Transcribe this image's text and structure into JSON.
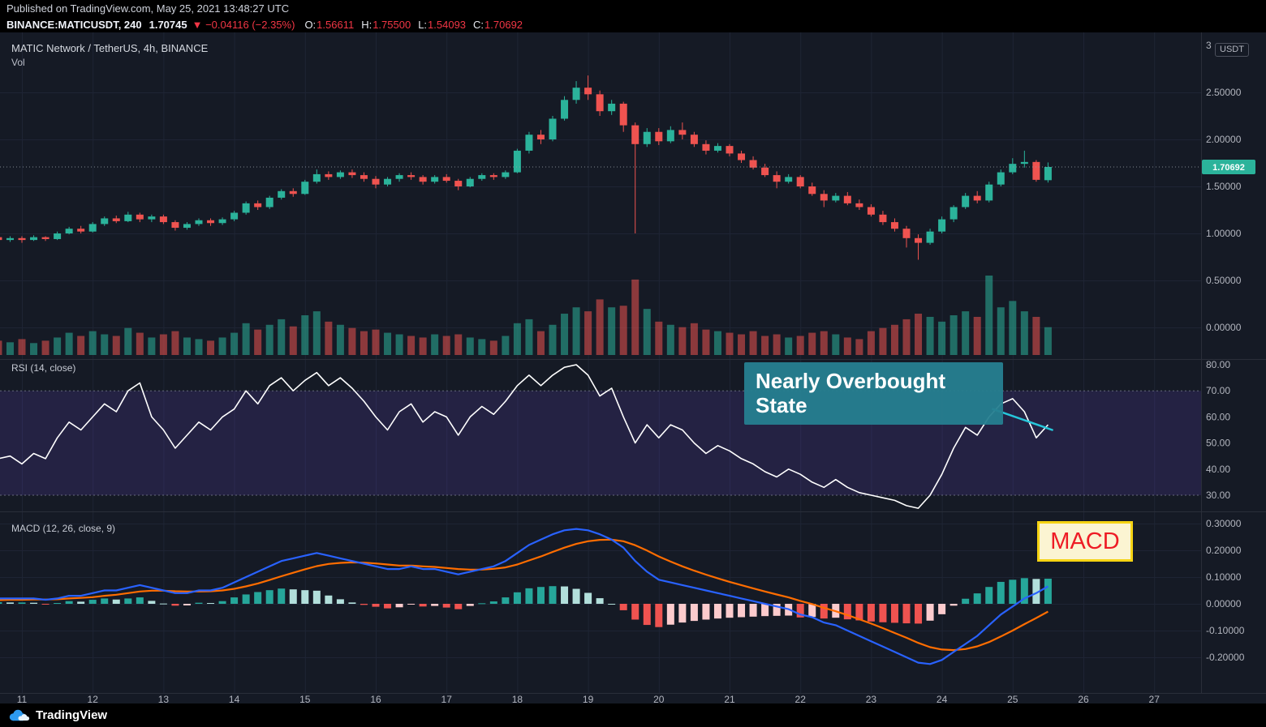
{
  "pub_bar": {
    "text": "Published on TradingView.com, May 25, 2021 13:48:27 UTC"
  },
  "header": {
    "symbol": "BINANCE:MATICUSDT, 240",
    "price": "1.70745",
    "change": "▼ −0.04116 (−2.35%)",
    "ohlc": [
      {
        "label": "O:",
        "value": "1.56611"
      },
      {
        "label": "H:",
        "value": "1.75500"
      },
      {
        "label": "L:",
        "value": "1.54093"
      },
      {
        "label": "C:",
        "value": "1.70692"
      }
    ]
  },
  "price_pane": {
    "title": "MATIC Network / TetherUS, 4h, BINANCE",
    "vol_label": "Vol",
    "unit_badge": "USDT"
  },
  "rsi_pane": {
    "title": "RSI (14, close)"
  },
  "macd_pane": {
    "title": "MACD (12, 26, close, 9)",
    "label_box": "MACD"
  },
  "annotation": {
    "lines": [
      "Nearly Overbought",
      "State"
    ]
  },
  "footer": {
    "brand": "TradingView"
  },
  "colors": {
    "bg": "#151a25",
    "grid": "#1e2434",
    "divider": "#2a2e39",
    "axis_text": "#b2b5be",
    "up": "#2bb39b",
    "down": "#ef5350",
    "vol_up": "rgba(43,179,155,0.55)",
    "vol_down": "rgba(239,83,80,0.55)",
    "rsi_band": "rgba(126,87,255,0.14)",
    "band_edge": "#8d93a1",
    "rsi_line": "#ffffff",
    "trendline": "#26c6da",
    "macd_line": "#2962ff",
    "macd_signal": "#ff6d00",
    "hist_up": "#26a69a",
    "hist_up_weak": "#b2dfdb",
    "hist_down": "#ef5350",
    "hist_down_weak": "#fccbcd",
    "annotation_bg": "#268090",
    "macd_box_border": "#f5d313",
    "macd_box_bg": "#fbf4d2",
    "macd_box_text": "#ee1c25",
    "last_price_tag_bg": "#2bb39b",
    "tag_text": "#ffffff"
  },
  "chart_data": [
    {
      "type": "candlestick",
      "title": "MATIC Network / TetherUS, 4h, BINANCE",
      "symbol": "BINANCE:MATICUSDT",
      "timeframe": "4h",
      "x_start_day": 10.666667,
      "x_step_days": 0.166667,
      "x_axis_days": [
        11,
        12,
        13,
        14,
        15,
        16,
        17,
        18,
        19,
        20,
        21,
        22,
        23,
        24,
        25,
        26,
        27
      ],
      "ylim": [
        0,
        3.14
      ],
      "y_ticks": [
        {
          "v": 3.0,
          "label": "3"
        },
        {
          "v": 2.5,
          "label": "2.50000"
        },
        {
          "v": 2.0,
          "label": "2.00000"
        },
        {
          "v": 1.5,
          "label": "1.50000"
        },
        {
          "v": 1.0,
          "label": "1.00000"
        },
        {
          "v": 0.5,
          "label": "0.50000"
        },
        {
          "v": 0.0,
          "label": "0.00000"
        }
      ],
      "last_price": 1.70692,
      "last_price_label": "1.70692",
      "candles": [
        [
          0.96,
          0.98,
          0.92,
          0.93
        ],
        [
          0.93,
          0.97,
          0.91,
          0.95
        ],
        [
          0.95,
          0.97,
          0.9,
          0.93
        ],
        [
          0.93,
          0.98,
          0.92,
          0.96
        ],
        [
          0.96,
          0.97,
          0.92,
          0.94
        ],
        [
          0.94,
          1.02,
          0.93,
          1.0
        ],
        [
          1.0,
          1.07,
          0.99,
          1.05
        ],
        [
          1.05,
          1.08,
          1.0,
          1.02
        ],
        [
          1.02,
          1.12,
          1.01,
          1.1
        ],
        [
          1.1,
          1.18,
          1.08,
          1.16
        ],
        [
          1.16,
          1.19,
          1.11,
          1.13
        ],
        [
          1.13,
          1.23,
          1.12,
          1.2
        ],
        [
          1.2,
          1.22,
          1.12,
          1.15
        ],
        [
          1.15,
          1.2,
          1.12,
          1.18
        ],
        [
          1.18,
          1.2,
          1.1,
          1.12
        ],
        [
          1.12,
          1.14,
          1.03,
          1.06
        ],
        [
          1.06,
          1.12,
          1.04,
          1.1
        ],
        [
          1.1,
          1.16,
          1.08,
          1.14
        ],
        [
          1.14,
          1.16,
          1.08,
          1.11
        ],
        [
          1.11,
          1.17,
          1.09,
          1.15
        ],
        [
          1.15,
          1.24,
          1.13,
          1.22
        ],
        [
          1.22,
          1.34,
          1.2,
          1.32
        ],
        [
          1.32,
          1.35,
          1.25,
          1.28
        ],
        [
          1.28,
          1.4,
          1.26,
          1.38
        ],
        [
          1.38,
          1.47,
          1.36,
          1.45
        ],
        [
          1.45,
          1.48,
          1.39,
          1.42
        ],
        [
          1.42,
          1.57,
          1.41,
          1.55
        ],
        [
          1.55,
          1.68,
          1.53,
          1.63
        ],
        [
          1.63,
          1.66,
          1.57,
          1.6
        ],
        [
          1.6,
          1.67,
          1.58,
          1.65
        ],
        [
          1.65,
          1.68,
          1.59,
          1.62
        ],
        [
          1.62,
          1.65,
          1.55,
          1.58
        ],
        [
          1.58,
          1.61,
          1.48,
          1.52
        ],
        [
          1.52,
          1.6,
          1.5,
          1.58
        ],
        [
          1.58,
          1.64,
          1.55,
          1.62
        ],
        [
          1.62,
          1.65,
          1.57,
          1.6
        ],
        [
          1.6,
          1.62,
          1.52,
          1.55
        ],
        [
          1.55,
          1.62,
          1.53,
          1.6
        ],
        [
          1.6,
          1.63,
          1.54,
          1.56
        ],
        [
          1.56,
          1.58,
          1.46,
          1.5
        ],
        [
          1.5,
          1.6,
          1.49,
          1.58
        ],
        [
          1.58,
          1.64,
          1.56,
          1.62
        ],
        [
          1.62,
          1.64,
          1.57,
          1.6
        ],
        [
          1.6,
          1.67,
          1.58,
          1.65
        ],
        [
          1.65,
          1.9,
          1.64,
          1.88
        ],
        [
          1.88,
          2.08,
          1.85,
          2.05
        ],
        [
          2.05,
          2.1,
          1.95,
          2.0
        ],
        [
          2.0,
          2.25,
          1.98,
          2.22
        ],
        [
          2.22,
          2.46,
          2.2,
          2.42
        ],
        [
          2.42,
          2.62,
          2.38,
          2.55
        ],
        [
          2.55,
          2.68,
          2.42,
          2.48
        ],
        [
          2.48,
          2.52,
          2.25,
          2.3
        ],
        [
          2.3,
          2.42,
          2.26,
          2.38
        ],
        [
          2.38,
          2.4,
          2.08,
          2.15
        ],
        [
          2.15,
          2.18,
          1.0,
          1.95
        ],
        [
          1.95,
          2.12,
          1.92,
          2.08
        ],
        [
          2.08,
          2.12,
          1.94,
          1.98
        ],
        [
          1.98,
          2.14,
          1.96,
          2.1
        ],
        [
          2.1,
          2.18,
          2.0,
          2.05
        ],
        [
          2.05,
          2.08,
          1.92,
          1.95
        ],
        [
          1.95,
          1.99,
          1.84,
          1.88
        ],
        [
          1.88,
          1.96,
          1.86,
          1.93
        ],
        [
          1.93,
          1.95,
          1.82,
          1.85
        ],
        [
          1.85,
          1.88,
          1.75,
          1.78
        ],
        [
          1.78,
          1.82,
          1.68,
          1.7
        ],
        [
          1.7,
          1.74,
          1.6,
          1.62
        ],
        [
          1.62,
          1.66,
          1.48,
          1.55
        ],
        [
          1.55,
          1.63,
          1.53,
          1.6
        ],
        [
          1.6,
          1.62,
          1.48,
          1.5
        ],
        [
          1.5,
          1.54,
          1.4,
          1.42
        ],
        [
          1.42,
          1.46,
          1.28,
          1.35
        ],
        [
          1.35,
          1.43,
          1.33,
          1.4
        ],
        [
          1.4,
          1.44,
          1.3,
          1.32
        ],
        [
          1.32,
          1.36,
          1.25,
          1.28
        ],
        [
          1.28,
          1.31,
          1.18,
          1.2
        ],
        [
          1.2,
          1.24,
          1.09,
          1.12
        ],
        [
          1.12,
          1.16,
          1.02,
          1.05
        ],
        [
          1.05,
          1.08,
          0.85,
          0.95
        ],
        [
          0.95,
          0.99,
          0.72,
          0.9
        ],
        [
          0.9,
          1.05,
          0.88,
          1.02
        ],
        [
          1.02,
          1.18,
          1.0,
          1.15
        ],
        [
          1.15,
          1.3,
          1.12,
          1.28
        ],
        [
          1.28,
          1.43,
          1.26,
          1.4
        ],
        [
          1.4,
          1.45,
          1.32,
          1.35
        ],
        [
          1.35,
          1.55,
          1.33,
          1.52
        ],
        [
          1.52,
          1.68,
          1.5,
          1.65
        ],
        [
          1.65,
          1.8,
          1.63,
          1.74
        ],
        [
          1.74,
          1.88,
          1.7,
          1.76
        ],
        [
          1.76,
          1.78,
          1.55,
          1.57
        ],
        [
          1.56611,
          1.755,
          1.54093,
          1.70692
        ]
      ],
      "volume": [
        18,
        16,
        20,
        15,
        18,
        22,
        28,
        24,
        30,
        26,
        24,
        34,
        28,
        22,
        26,
        30,
        22,
        20,
        18,
        22,
        28,
        40,
        32,
        38,
        45,
        36,
        50,
        55,
        42,
        38,
        34,
        30,
        32,
        28,
        26,
        24,
        22,
        26,
        24,
        26,
        22,
        20,
        18,
        24,
        40,
        45,
        30,
        38,
        52,
        60,
        55,
        70,
        60,
        62,
        95,
        58,
        42,
        38,
        35,
        40,
        32,
        30,
        28,
        26,
        30,
        24,
        26,
        22,
        24,
        28,
        30,
        26,
        22,
        20,
        30,
        34,
        38,
        45,
        52,
        48,
        42,
        50,
        55,
        48,
        100,
        60,
        68,
        55,
        48,
        35
      ]
    },
    {
      "type": "line",
      "name": "RSI (14, close)",
      "color": "#ffffff",
      "band": [
        30,
        70
      ],
      "ylim": [
        22,
        84
      ],
      "y_ticks": [
        {
          "v": 80,
          "label": "80.00"
        },
        {
          "v": 70,
          "label": "70.00"
        },
        {
          "v": 60,
          "label": "60.00"
        },
        {
          "v": 50,
          "label": "50.00"
        },
        {
          "v": 40,
          "label": "40.00"
        },
        {
          "v": 30,
          "label": "30.00"
        }
      ],
      "values": [
        44,
        45,
        42,
        46,
        44,
        52,
        58,
        55,
        60,
        65,
        62,
        70,
        73,
        60,
        55,
        48,
        53,
        58,
        55,
        60,
        63,
        70,
        65,
        72,
        75,
        70,
        74,
        77,
        72,
        75,
        71,
        66,
        60,
        55,
        62,
        65,
        58,
        62,
        60,
        53,
        60,
        64,
        61,
        66,
        72,
        76,
        72,
        76,
        79,
        80,
        76,
        68,
        71,
        60,
        50,
        57,
        52,
        57,
        55,
        50,
        46,
        49,
        47,
        44,
        42,
        39,
        37,
        40,
        38,
        35,
        33,
        36,
        33,
        31,
        30,
        29,
        28,
        26,
        25,
        30,
        38,
        48,
        56,
        53,
        60,
        65,
        67,
        62,
        52,
        57
      ],
      "trendline": {
        "t1": 24.72,
        "v1": 63,
        "t2": 25.56,
        "v2": 55
      }
    },
    {
      "type": "macd",
      "name": "MACD (12, 26, close, 9)",
      "ylim": [
        -0.27,
        0.33
      ],
      "y_ticks": [
        {
          "v": 0.3,
          "label": "0.30000"
        },
        {
          "v": 0.2,
          "label": "0.20000"
        },
        {
          "v": 0.1,
          "label": "0.10000"
        },
        {
          "v": 0.0,
          "label": "0.00000"
        },
        {
          "v": -0.1,
          "label": "-0.10000"
        },
        {
          "v": -0.2,
          "label": "-0.20000"
        }
      ],
      "macd": [
        0.02,
        0.02,
        0.02,
        0.02,
        0.015,
        0.02,
        0.03,
        0.03,
        0.04,
        0.05,
        0.05,
        0.06,
        0.07,
        0.06,
        0.05,
        0.04,
        0.04,
        0.05,
        0.05,
        0.06,
        0.08,
        0.1,
        0.12,
        0.14,
        0.16,
        0.17,
        0.18,
        0.19,
        0.18,
        0.17,
        0.16,
        0.15,
        0.14,
        0.13,
        0.13,
        0.14,
        0.13,
        0.13,
        0.12,
        0.11,
        0.12,
        0.13,
        0.14,
        0.16,
        0.19,
        0.22,
        0.24,
        0.26,
        0.275,
        0.28,
        0.275,
        0.26,
        0.24,
        0.21,
        0.16,
        0.12,
        0.09,
        0.08,
        0.07,
        0.06,
        0.05,
        0.04,
        0.03,
        0.02,
        0.01,
        0.0,
        -0.01,
        -0.02,
        -0.04,
        -0.05,
        -0.07,
        -0.08,
        -0.1,
        -0.12,
        -0.14,
        -0.16,
        -0.18,
        -0.2,
        -0.22,
        -0.225,
        -0.21,
        -0.18,
        -0.15,
        -0.12,
        -0.08,
        -0.04,
        -0.01,
        0.02,
        0.04,
        0.065
      ],
      "signal": [
        0.014,
        0.015,
        0.015,
        0.016,
        0.016,
        0.017,
        0.02,
        0.022,
        0.025,
        0.03,
        0.034,
        0.04,
        0.046,
        0.049,
        0.049,
        0.047,
        0.046,
        0.046,
        0.047,
        0.05,
        0.056,
        0.065,
        0.076,
        0.089,
        0.103,
        0.116,
        0.129,
        0.141,
        0.149,
        0.153,
        0.155,
        0.154,
        0.151,
        0.147,
        0.143,
        0.143,
        0.14,
        0.138,
        0.134,
        0.13,
        0.128,
        0.128,
        0.131,
        0.136,
        0.147,
        0.162,
        0.177,
        0.194,
        0.21,
        0.224,
        0.234,
        0.239,
        0.24,
        0.234,
        0.219,
        0.199,
        0.177,
        0.158,
        0.14,
        0.124,
        0.109,
        0.095,
        0.082,
        0.07,
        0.058,
        0.046,
        0.035,
        0.024,
        0.011,
        -0.001,
        -0.015,
        -0.028,
        -0.042,
        -0.058,
        -0.074,
        -0.091,
        -0.109,
        -0.127,
        -0.146,
        -0.162,
        -0.171,
        -0.173,
        -0.169,
        -0.159,
        -0.143,
        -0.122,
        -0.1,
        -0.076,
        -0.053,
        -0.029
      ]
    }
  ]
}
